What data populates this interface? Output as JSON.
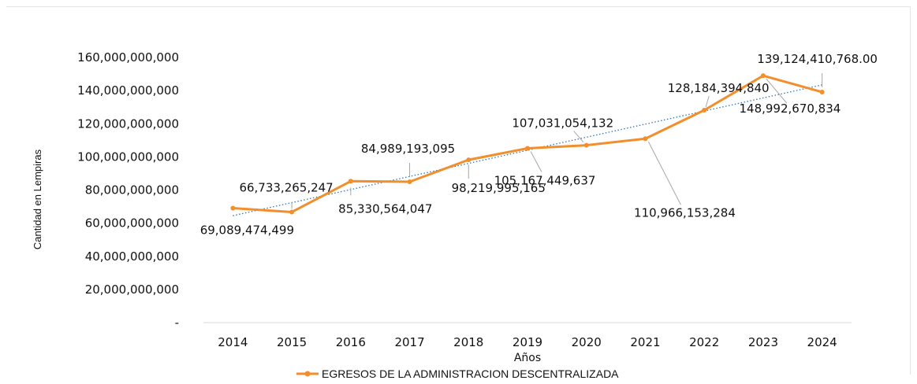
{
  "chart_data": {
    "type": "line",
    "categories": [
      "2014",
      "2015",
      "2016",
      "2017",
      "2018",
      "2019",
      "2020",
      "2021",
      "2022",
      "2023",
      "2024"
    ],
    "series": [
      {
        "name": "EGRESOS DE LA ADMINISTRACION DESCENTRALIZADA",
        "color": "#f28e2b",
        "values": [
          69089474499,
          66733265247,
          85330564047,
          84989193095,
          98219995165,
          105167449637,
          107031054132,
          110966153284,
          128184394840,
          148992670834,
          139124410768.0
        ],
        "labels": [
          "69,089,474,499",
          "66,733,265,247",
          "85,330,564,047",
          "84,989,193,095",
          "98,219,995,165",
          "105,167,449,637",
          "107,031,054,132",
          "110,966,153,284",
          "128,184,394,840",
          "148,992,670,834",
          "139,124,410,768.00"
        ]
      }
    ],
    "trendline": {
      "type": "linear",
      "color": "#2e75b6",
      "style": "dotted"
    },
    "xlabel": "Años",
    "ylabel": "Cantidad en Lempiras",
    "ylim": [
      0,
      160000000000
    ],
    "yticks": [
      {
        "value": 0,
        "label": "-"
      },
      {
        "value": 20000000000,
        "label": "20,000,000,000"
      },
      {
        "value": 40000000000,
        "label": "40,000,000,000"
      },
      {
        "value": 60000000000,
        "label": "60,000,000,000"
      },
      {
        "value": 80000000000,
        "label": "80,000,000,000"
      },
      {
        "value": 100000000000,
        "label": "100,000,000,000"
      },
      {
        "value": 120000000000,
        "label": "120,000,000,000"
      },
      {
        "value": 140000000000,
        "label": "140,000,000,000"
      },
      {
        "value": 160000000000,
        "label": "160,000,000,000"
      }
    ],
    "grid": false,
    "legend_position": "bottom"
  }
}
